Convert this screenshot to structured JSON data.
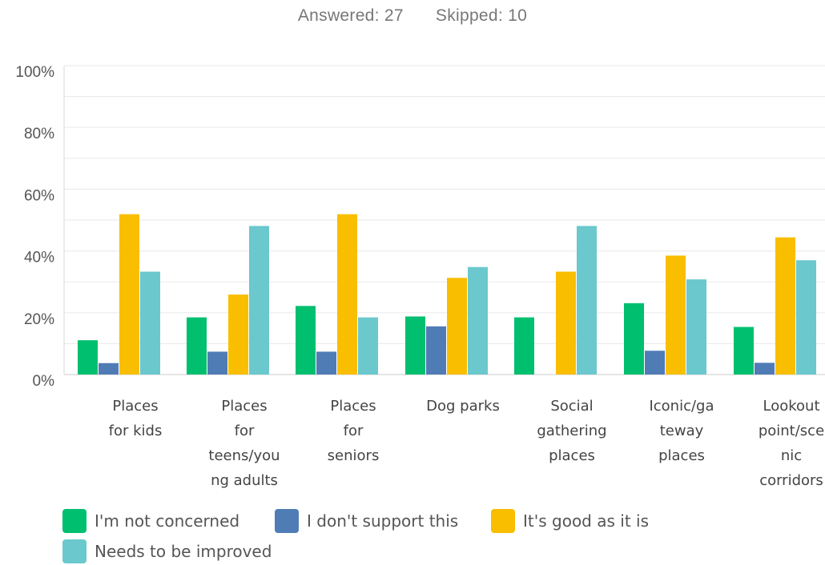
{
  "header": {
    "answered": "Answered: 27",
    "skipped": "Skipped: 10"
  },
  "chart_data": {
    "type": "bar",
    "categories": [
      [
        "Places",
        "for kids"
      ],
      [
        "Places",
        "for",
        "teens/you",
        "ng adults"
      ],
      [
        "Places",
        "for",
        "seniors"
      ],
      [
        "Dog parks"
      ],
      [
        "Social",
        "gathering",
        "places"
      ],
      [
        "Iconic/ga",
        "teway",
        "places"
      ],
      [
        "Lookout",
        "point/sce",
        "nic",
        "corridors"
      ]
    ],
    "series": [
      {
        "name": "I'm not concerned",
        "color": "#00BF6F",
        "values": [
          11.1,
          18.5,
          22.2,
          18.8,
          18.5,
          23.1,
          15.4
        ]
      },
      {
        "name": "I don't support this",
        "color": "#507CB6",
        "values": [
          3.7,
          7.4,
          7.4,
          15.6,
          0,
          7.7,
          3.8
        ]
      },
      {
        "name": "It's good as it is",
        "color": "#F9BE00",
        "values": [
          51.9,
          25.9,
          51.9,
          31.3,
          33.3,
          38.5,
          44.4
        ]
      },
      {
        "name": "Needs to be improved",
        "color": "#6BC8CD",
        "values": [
          33.3,
          48.1,
          18.5,
          34.8,
          48.1,
          30.8,
          37.0
        ]
      }
    ],
    "yticks": [
      "0%",
      "20%",
      "40%",
      "60%",
      "80%",
      "100%"
    ],
    "ylim": [
      0,
      100
    ],
    "grid": true,
    "legend_position": "bottom-left"
  }
}
